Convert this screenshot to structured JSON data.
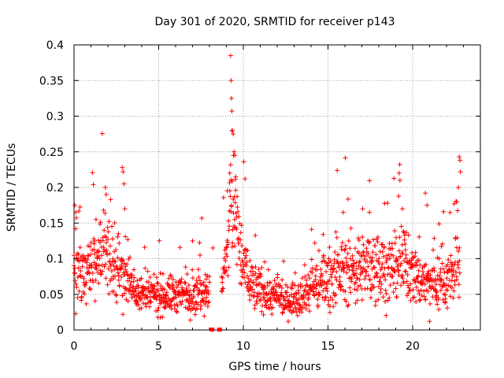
{
  "chart_data": {
    "type": "scatter",
    "title": "Day 301 of 2020, SRMTID for receiver p143",
    "xlabel": "GPS time / hours",
    "ylabel": "SRMTID / TECUs",
    "xlim": [
      0,
      24
    ],
    "ylim": [
      0,
      0.4
    ],
    "x_ticks": [
      0,
      5,
      10,
      15,
      20
    ],
    "x_tick_labels": [
      "0",
      "5",
      "10",
      "15",
      "20"
    ],
    "y_ticks": [
      0,
      0.05,
      0.1,
      0.15,
      0.2,
      0.25,
      0.3,
      0.35,
      0.4
    ],
    "y_tick_labels": [
      "0",
      "0.05",
      "0.1",
      "0.15",
      "0.2",
      "0.25",
      "0.3",
      "0.35",
      "0.4"
    ],
    "grid": true,
    "marker": "+",
    "series": [
      {
        "name": "SRMTID",
        "color": "#ff0000",
        "profile_hours": [
          0,
          0.5,
          1,
          1.5,
          2,
          2.5,
          3,
          3.5,
          4,
          5,
          6,
          7,
          7.5,
          8,
          8.5,
          9,
          9.3,
          9.6,
          10,
          10.5,
          11,
          12,
          12.5,
          13,
          14,
          15,
          16,
          17,
          18,
          19,
          19.5,
          20,
          21,
          22,
          22.8
        ],
        "profile_median": [
          0.075,
          0.08,
          0.085,
          0.095,
          0.1,
          0.09,
          0.075,
          0.06,
          0.05,
          0.048,
          0.05,
          0.05,
          0.055,
          0.06,
          0.065,
          0.085,
          0.2,
          0.14,
          0.09,
          0.065,
          0.055,
          0.045,
          0.04,
          0.045,
          0.06,
          0.075,
          0.085,
          0.085,
          0.09,
          0.085,
          0.095,
          0.08,
          0.065,
          0.07,
          0.09
        ],
        "spikes": [
          {
            "x": 0.05,
            "y": 0.175
          },
          {
            "x": 0.1,
            "y": 0.165
          },
          {
            "x": 1.3,
            "y": 0.155
          },
          {
            "x": 1.85,
            "y": 0.2
          },
          {
            "x": 1.9,
            "y": 0.19
          },
          {
            "x": 2.85,
            "y": 0.228
          },
          {
            "x": 2.9,
            "y": 0.222
          },
          {
            "x": 2.95,
            "y": 0.205
          },
          {
            "x": 3.0,
            "y": 0.17
          },
          {
            "x": 7.0,
            "y": 0.125
          },
          {
            "x": 8.2,
            "y": 0.115
          },
          {
            "x": 9.25,
            "y": 0.385
          },
          {
            "x": 9.28,
            "y": 0.35
          },
          {
            "x": 9.3,
            "y": 0.325
          },
          {
            "x": 9.32,
            "y": 0.307
          },
          {
            "x": 9.35,
            "y": 0.28
          },
          {
            "x": 9.4,
            "y": 0.275
          },
          {
            "x": 9.45,
            "y": 0.25
          },
          {
            "x": 9.5,
            "y": 0.245
          },
          {
            "x": 9.2,
            "y": 0.22
          },
          {
            "x": 9.55,
            "y": 0.215
          },
          {
            "x": 10.1,
            "y": 0.212
          },
          {
            "x": 15.9,
            "y": 0.165
          },
          {
            "x": 17.05,
            "y": 0.17
          },
          {
            "x": 17.45,
            "y": 0.165
          },
          {
            "x": 19.2,
            "y": 0.22
          },
          {
            "x": 19.25,
            "y": 0.21
          },
          {
            "x": 19.4,
            "y": 0.17
          },
          {
            "x": 20.75,
            "y": 0.192
          },
          {
            "x": 20.85,
            "y": 0.175
          },
          {
            "x": 21.0,
            "y": 0.012
          },
          {
            "x": 22.75,
            "y": 0.243
          },
          {
            "x": 22.8,
            "y": 0.238
          },
          {
            "x": 22.82,
            "y": 0.222
          },
          {
            "x": 22.7,
            "y": 0.2
          },
          {
            "x": 22.6,
            "y": 0.18
          }
        ]
      }
    ],
    "gap_markers": [
      {
        "x": 8.15,
        "y": 0
      },
      {
        "x": 8.6,
        "y": 0
      }
    ]
  }
}
